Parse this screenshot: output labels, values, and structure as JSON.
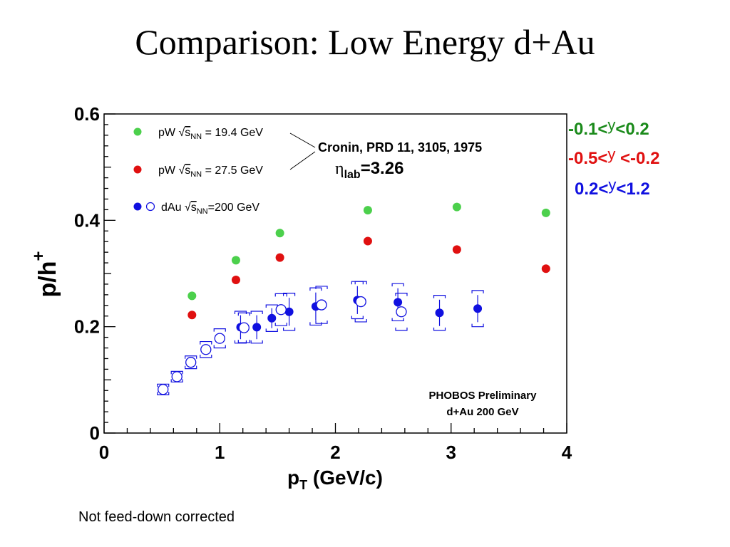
{
  "slide": {
    "title": "Comparison: Low Energy d+Au",
    "footnote": "Not feed-down corrected"
  },
  "rapidity_labels": [
    {
      "prefix": "-0.1<",
      "var": "y",
      "suffix": "<0.2",
      "color": "#1a8a1a"
    },
    {
      "prefix": "-0.5<",
      "var": "y",
      "suffix": " <-0.2",
      "color": "#e01010"
    },
    {
      "prefix": "0.2<",
      "var": "y",
      "suffix": "<1.2",
      "color": "#1010e0"
    }
  ],
  "chart_data": {
    "type": "scatter",
    "title": "",
    "xlabel": "p",
    "xlabel_sub": "T",
    "xlabel_unit": "(GeV/c)",
    "ylabel": "p/h",
    "ylabel_sup": "+",
    "xlim": [
      0,
      4
    ],
    "ylim": [
      0,
      0.6
    ],
    "xticks": [
      "0",
      "1",
      "2",
      "3",
      "4"
    ],
    "yticks": [
      "0",
      "0.2",
      "0.4",
      "0.6"
    ],
    "legend": {
      "placement": "top-left",
      "entries": [
        {
          "text": "pW √s_NN = 19.4 GeV",
          "pre": "pW ",
          "sub": "NN",
          "post": " = 19.4 GeV"
        },
        {
          "text": "pW √s_NN = 27.5 GeV",
          "pre": "pW ",
          "sub": "NN",
          "post": " = 27.5 GeV"
        },
        {
          "text": "dAu √s_NN=200 GeV",
          "pre": "dAu ",
          "sub": "NN",
          "post": "=200 GeV"
        }
      ]
    },
    "annotations": {
      "reference": "Cronin, PRD 11, 3105, 1975",
      "eta_symbol": "η",
      "eta_sub": "lab",
      "eta_value": "=3.26",
      "experiment": "PHOBOS Preliminary",
      "system": "d+Au 200 GeV"
    },
    "series": [
      {
        "name": "pW √s_NN = 19.4 GeV",
        "color": "#4cd04c",
        "marker": "filled",
        "points": [
          [
            0.76,
            0.258
          ],
          [
            1.14,
            0.325
          ],
          [
            1.52,
            0.376
          ],
          [
            2.28,
            0.419
          ],
          [
            3.05,
            0.425
          ],
          [
            3.82,
            0.414
          ]
        ]
      },
      {
        "name": "pW √s_NN = 27.5 GeV",
        "color": "#e01010",
        "marker": "filled",
        "points": [
          [
            0.76,
            0.222
          ],
          [
            1.14,
            0.288
          ],
          [
            1.52,
            0.33
          ],
          [
            2.28,
            0.361
          ],
          [
            3.05,
            0.345
          ],
          [
            3.82,
            0.309
          ]
        ]
      },
      {
        "name": "dAu √s_NN=200 GeV",
        "color": "#1010e0",
        "marker": "filled",
        "points": [
          [
            1.18,
            0.199,
            0.03
          ],
          [
            1.32,
            0.199,
            0.03
          ],
          [
            1.45,
            0.216,
            0.025
          ],
          [
            1.6,
            0.228,
            0.035
          ],
          [
            1.83,
            0.238,
            0.035
          ],
          [
            2.19,
            0.25,
            0.035
          ],
          [
            2.54,
            0.246,
            0.035
          ],
          [
            2.9,
            0.226,
            0.033
          ],
          [
            3.23,
            0.234,
            0.034
          ]
        ]
      },
      {
        "name": "dAu √s_NN=200 GeV",
        "color": "#1010e0",
        "marker": "open",
        "points": [
          [
            0.51,
            0.082,
            0.01
          ],
          [
            0.63,
            0.106,
            0.01
          ],
          [
            0.75,
            0.133,
            0.012
          ],
          [
            0.88,
            0.157,
            0.015
          ],
          [
            1.0,
            0.178,
            0.018
          ],
          [
            1.21,
            0.198,
            0.028
          ],
          [
            1.53,
            0.232,
            0.03
          ],
          [
            1.88,
            0.241,
            0.035
          ],
          [
            2.22,
            0.247,
            0.038
          ],
          [
            2.57,
            0.228,
            0.035
          ]
        ]
      }
    ]
  }
}
